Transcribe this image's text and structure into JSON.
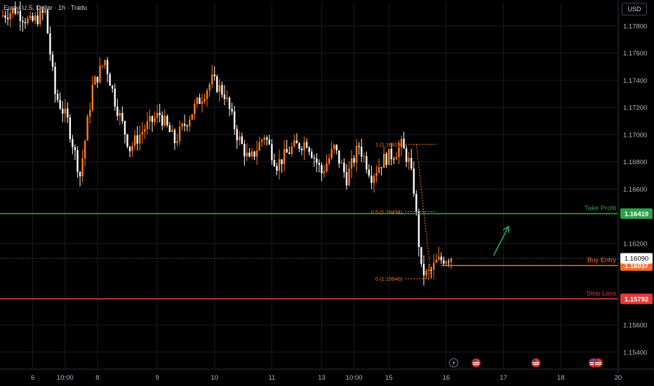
{
  "header": {
    "title": "Euro / U.S. Dollar · 1h · Tradu",
    "currency": "USD"
  },
  "colors": {
    "background": "#000000",
    "up": "#ff7a1a",
    "down": "#ffffff",
    "take_profit": "#2f9e4f",
    "entry": "#ff6a2b",
    "stop_loss": "#e53935",
    "fib": "#ff7a1a",
    "arrow": "#26a65b",
    "grid": "#1a1c24",
    "axis_text": "#b2b5be"
  },
  "chart_data": {
    "type": "candlestick",
    "symbol": "Euro / U.S. Dollar",
    "timeframe": "1h",
    "y_axis": {
      "min": 1.1528,
      "max": 1.1797,
      "ticks": [
        1.154,
        1.156,
        1.162,
        1.166,
        1.168,
        1.17,
        1.172,
        1.174,
        1.176,
        1.178
      ],
      "tick_labels": [
        "1.15400",
        "1.15600",
        "1.16200",
        "1.16600",
        "1.16800",
        "1.17000",
        "1.17200",
        "1.17400",
        "1.17600",
        "1.17800"
      ]
    },
    "x_axis": {
      "first_bar_value": 0,
      "last_bar_value": 210,
      "labels": [
        {
          "text": "6",
          "bar": 12
        },
        {
          "text": "10:00",
          "bar": 25
        },
        {
          "text": "8",
          "bar": 38
        },
        {
          "text": "9",
          "bar": 62
        },
        {
          "text": "10",
          "bar": 85
        },
        {
          "text": "11",
          "bar": 108
        },
        {
          "text": "13",
          "bar": 128
        },
        {
          "text": "10:00",
          "bar": 141
        },
        {
          "text": "15",
          "bar": 155
        },
        {
          "text": "16",
          "bar": 178
        },
        {
          "text": "17",
          "bar": 201
        },
        {
          "text": "18",
          "bar": 224
        },
        {
          "text": "20",
          "bar": 247
        }
      ]
    },
    "price_path": [
      [
        0,
        1.1787
      ],
      [
        6,
        1.1792
      ],
      [
        12,
        1.1782
      ],
      [
        18,
        1.179
      ],
      [
        22,
        1.173
      ],
      [
        27,
        1.171
      ],
      [
        32,
        1.167
      ],
      [
        37,
        1.1735
      ],
      [
        42,
        1.1755
      ],
      [
        46,
        1.1725
      ],
      [
        52,
        1.169
      ],
      [
        58,
        1.1705
      ],
      [
        64,
        1.1715
      ],
      [
        70,
        1.1695
      ],
      [
        78,
        1.172
      ],
      [
        85,
        1.174
      ],
      [
        90,
        1.173
      ],
      [
        95,
        1.17
      ],
      [
        100,
        1.168
      ],
      [
        106,
        1.17
      ],
      [
        111,
        1.1678
      ],
      [
        117,
        1.169
      ],
      [
        123,
        1.1695
      ],
      [
        129,
        1.1672
      ],
      [
        134,
        1.169
      ],
      [
        139,
        1.1668
      ],
      [
        144,
        1.1692
      ],
      [
        149,
        1.167
      ],
      [
        154,
        1.1682
      ],
      [
        158,
        1.1686
      ],
      [
        161,
        1.1692
      ],
      [
        164,
        1.168
      ],
      [
        166,
        1.166
      ],
      [
        168,
        1.162
      ],
      [
        169,
        1.16
      ],
      [
        171,
        1.1597
      ],
      [
        173,
        1.16
      ],
      [
        175,
        1.1606
      ],
      [
        178,
        1.1609
      ],
      [
        180,
        1.161
      ]
    ],
    "last_price": 1.1609,
    "last_price_label": "1.16090",
    "levels": [
      {
        "name": "Take Profit",
        "price": 1.16419,
        "label": "1.16419",
        "color": "#2f9e4f",
        "start_bar": 0
      },
      {
        "name": "Buy Entry",
        "price": 1.16037,
        "label": "1.16037",
        "color": "#ff6a2b",
        "start_bar": 176
      },
      {
        "name": "Stop Loss",
        "price": 1.15792,
        "label": "1.15792",
        "color": "#e53935",
        "start_bar": 0
      }
    ],
    "fibonacci": {
      "start_bar": 166,
      "end_bar": 172,
      "line_end_bar": 173,
      "levels": [
        {
          "label": "1 (1.16929)",
          "price": 1.16929
        },
        {
          "label": "0.5 (1.16434)",
          "price": 1.16434
        },
        {
          "label": "0 (1.15940)",
          "price": 1.1594
        }
      ]
    },
    "arrow": {
      "from": {
        "bar": 197,
        "price": 1.1611
      },
      "to": {
        "bar": 203,
        "price": 1.16325
      }
    },
    "event_markers": [
      {
        "bar": 181,
        "kind": "lightning-icon"
      },
      {
        "bar": 190,
        "kind": "us-flag-icon"
      },
      {
        "bar": 214,
        "kind": "us-flag-icon"
      },
      {
        "bar": 237,
        "kind": "us-flag-icon"
      },
      {
        "bar": 239,
        "kind": "us-flag-icon"
      }
    ]
  }
}
